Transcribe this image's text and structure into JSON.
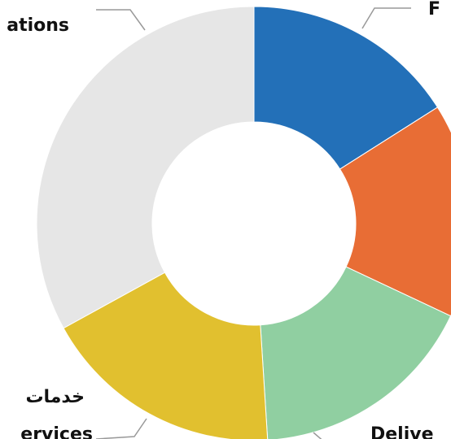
{
  "chart_data": {
    "type": "donut",
    "categories": [
      "F",
      null,
      "Delive",
      "ervices",
      "ations"
    ],
    "values": [
      16,
      16,
      17,
      18,
      33
    ],
    "colors": [
      "#2370b8",
      "#e86d35",
      "#90cfa1",
      "#e1c02f",
      "#e6e6e6"
    ],
    "annotations": [
      "خدمات"
    ]
  }
}
